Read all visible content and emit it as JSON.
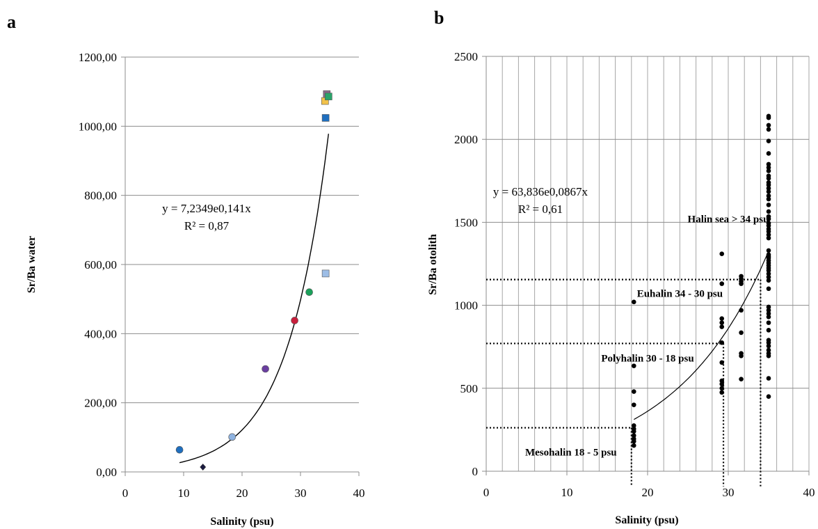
{
  "chart_data": [
    {
      "panel": "a",
      "type": "scatter",
      "xlabel": "Salinity (psu)",
      "ylabel": "Sr/Ba water",
      "xlim": [
        0,
        40
      ],
      "ylim": [
        0,
        1200
      ],
      "xticks": [
        "0",
        "10",
        "20",
        "30",
        "40"
      ],
      "yticks": [
        "0,00",
        "200,00",
        "400,00",
        "600,00",
        "800,00",
        "1000,00",
        "1200,00"
      ],
      "grid": "horizontal",
      "trendline": {
        "type": "exponential",
        "a": 7.2349,
        "b": 0.141,
        "x_range": [
          9.3,
          34.8
        ]
      },
      "equation": "y = 7,2349e0,141x",
      "r2_label": "R² = 0,87",
      "points": [
        {
          "x": 9.3,
          "y": 64,
          "marker": "circle",
          "color": "#1f6fbf"
        },
        {
          "x": 13.3,
          "y": 14,
          "marker": "diamond",
          "color": "#1a1a40"
        },
        {
          "x": 18.3,
          "y": 101,
          "marker": "circle",
          "color": "#8fb3e0"
        },
        {
          "x": 24.0,
          "y": 298,
          "marker": "circle",
          "color": "#6a3fa0"
        },
        {
          "x": 29.0,
          "y": 438,
          "marker": "circle",
          "color": "#c81e3c"
        },
        {
          "x": 31.5,
          "y": 520,
          "marker": "circle",
          "color": "#1aa05a"
        },
        {
          "x": 34.3,
          "y": 574,
          "marker": "square",
          "color": "#9dbde6"
        },
        {
          "x": 34.3,
          "y": 1024,
          "marker": "square",
          "color": "#1f6fbf"
        },
        {
          "x": 34.2,
          "y": 1073,
          "marker": "square",
          "color": "#f2c24a"
        },
        {
          "x": 34.5,
          "y": 1093,
          "marker": "square",
          "color": "#8a6a8a"
        },
        {
          "x": 34.8,
          "y": 1086,
          "marker": "square",
          "color": "#2aa36a"
        }
      ]
    },
    {
      "panel": "b",
      "type": "scatter",
      "xlabel": "Salinity (psu)",
      "ylabel": "Sr/Ba otolith",
      "xlim": [
        0,
        40
      ],
      "ylim": [
        0,
        2500
      ],
      "xticks": [
        "0",
        "10",
        "20",
        "30",
        "40"
      ],
      "yticks": [
        "0",
        "500",
        "1000",
        "1500",
        "2000",
        "2500"
      ],
      "grid": "both",
      "trendline": {
        "type": "exponential",
        "a": 63.836,
        "b": 0.0867,
        "x_range": [
          18.3,
          35.0
        ]
      },
      "equation": "y = 63,836e0,0867x",
      "r2_label": "R² = 0,61",
      "zones": [
        {
          "label": "Halin sea > 34 psu",
          "x_anchor": 30,
          "y_anchor": 1500,
          "boundary_y": null
        },
        {
          "label": "Euhalin 34 - 30 psu",
          "x_anchor": 24,
          "y_anchor": 1050,
          "boundary_y": 1155,
          "boundary_x": 34.0
        },
        {
          "label": "Polyhalin 30 - 18 psu",
          "x_anchor": 20,
          "y_anchor": 660,
          "boundary_y": 770,
          "boundary_x": 29.4
        },
        {
          "label": "Mesohalin 18 - 5 psu",
          "x_anchor": 10.5,
          "y_anchor": 95,
          "boundary_y": 262,
          "boundary_x": 18.0
        }
      ],
      "groups": [
        {
          "x": 18.3,
          "y": [
            1020,
            635,
            480,
            400,
            275,
            255,
            240,
            215,
            195,
            180,
            155
          ]
        },
        {
          "x": 29.2,
          "y": [
            1310,
            1130,
            920,
            895,
            870,
            775,
            655,
            545,
            525,
            500,
            475
          ]
        },
        {
          "x": 31.6,
          "y": [
            1175,
            1160,
            1145,
            1130,
            970,
            835,
            710,
            695,
            555
          ]
        },
        {
          "x": 35.0,
          "y": [
            2140,
            2130,
            2085,
            2060,
            1990,
            1915,
            1850,
            1830,
            1810,
            1780,
            1765,
            1740,
            1725,
            1705,
            1685,
            1660,
            1640,
            1605,
            1565,
            1535,
            1520,
            1495,
            1480,
            1460,
            1445,
            1425,
            1405,
            1330,
            1305,
            1295,
            1285,
            1270,
            1255,
            1240,
            1225,
            1210,
            1190,
            1170,
            1150,
            1100,
            990,
            970,
            950,
            930,
            895,
            850,
            790,
            775,
            755,
            730,
            710,
            695,
            560,
            450
          ]
        }
      ]
    }
  ],
  "panels": {
    "a": "a",
    "b": "b"
  }
}
